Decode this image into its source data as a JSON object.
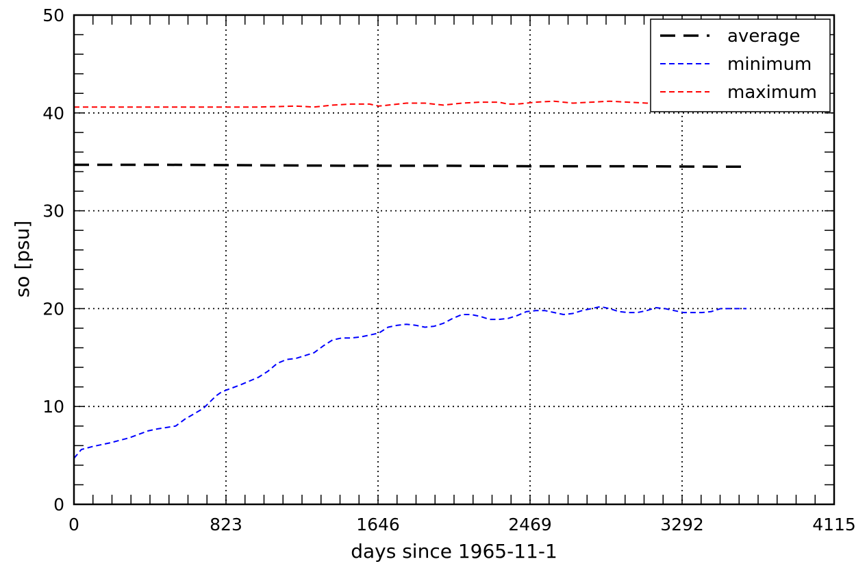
{
  "chart_data": {
    "type": "line",
    "xlabel": "days since 1965-11-1",
    "ylabel": "so [psu]",
    "xlim": [
      0,
      4115
    ],
    "ylim": [
      0,
      50
    ],
    "x_ticks": [
      0,
      823,
      1646,
      2469,
      3292,
      4115
    ],
    "y_ticks": [
      0,
      10,
      20,
      30,
      40,
      50
    ],
    "grid": "dotted, at labeled ticks",
    "legend_position": "top-right",
    "series": [
      {
        "name": "average",
        "color": "#000000",
        "style": "long-dash",
        "x": [
          0,
          500,
          1000,
          1500,
          2000,
          2500,
          3000,
          3500,
          3640
        ],
        "y": [
          34.7,
          34.7,
          34.65,
          34.6,
          34.6,
          34.55,
          34.55,
          34.5,
          34.5
        ]
      },
      {
        "name": "minimum",
        "color": "#0000ff",
        "style": "short-dash",
        "x": [
          0,
          40,
          100,
          200,
          300,
          400,
          450,
          550,
          600,
          700,
          770,
          800,
          900,
          1000,
          1050,
          1100,
          1150,
          1200,
          1300,
          1350,
          1400,
          1450,
          1500,
          1550,
          1600,
          1650,
          1700,
          1750,
          1800,
          1850,
          1900,
          1950,
          2000,
          2050,
          2100,
          2150,
          2200,
          2250,
          2300,
          2350,
          2400,
          2450,
          2500,
          2550,
          2600,
          2650,
          2700,
          2750,
          2800,
          2850,
          2900,
          2950,
          3000,
          3050,
          3100,
          3150,
          3200,
          3250,
          3300,
          3350,
          3400,
          3450,
          3500,
          3550,
          3600,
          3640
        ],
        "y": [
          4.7,
          5.6,
          5.9,
          6.3,
          6.8,
          7.5,
          7.7,
          8.0,
          8.7,
          9.8,
          11.1,
          11.5,
          12.2,
          13.0,
          13.6,
          14.4,
          14.8,
          14.9,
          15.5,
          16.2,
          16.8,
          17.0,
          17.0,
          17.1,
          17.3,
          17.5,
          18.1,
          18.3,
          18.4,
          18.3,
          18.1,
          18.2,
          18.5,
          19.0,
          19.4,
          19.4,
          19.2,
          18.9,
          18.9,
          19.0,
          19.3,
          19.7,
          19.8,
          19.8,
          19.6,
          19.4,
          19.5,
          19.8,
          20.0,
          20.2,
          20.0,
          19.7,
          19.6,
          19.6,
          19.8,
          20.1,
          20.0,
          19.8,
          19.6,
          19.6,
          19.6,
          19.7,
          20.0,
          20.0,
          20.0,
          20.0
        ]
      },
      {
        "name": "maximum",
        "color": "#ff0000",
        "style": "short-dash",
        "x": [
          0,
          200,
          400,
          600,
          800,
          1000,
          1200,
          1300,
          1400,
          1500,
          1600,
          1650,
          1700,
          1800,
          1900,
          2000,
          2100,
          2200,
          2300,
          2350,
          2400,
          2500,
          2600,
          2700,
          2800,
          2900,
          3000,
          3100,
          3200,
          3300,
          3400
        ],
        "y": [
          40.6,
          40.6,
          40.6,
          40.6,
          40.6,
          40.6,
          40.7,
          40.6,
          40.8,
          40.9,
          40.9,
          40.7,
          40.8,
          41.0,
          41.0,
          40.8,
          41.0,
          41.1,
          41.1,
          40.9,
          40.9,
          41.1,
          41.2,
          41.0,
          41.1,
          41.2,
          41.1,
          41.0,
          41.0,
          41.0,
          41.0
        ]
      }
    ]
  }
}
